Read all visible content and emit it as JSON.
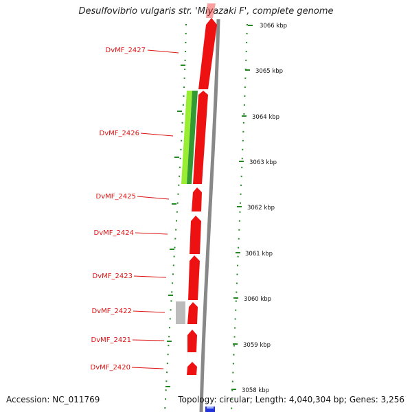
{
  "title": "Desulfovibrio vulgaris str. 'Miyazaki F', complete genome",
  "footer": {
    "accession": "Accession: NC_011769",
    "topology": "Topology: circular; Length: 4,040,304 bp; Genes: 3,256"
  },
  "colors": {
    "cds": "#ee1111",
    "gene_label": "#dd1111",
    "rna": "#bbbbbb",
    "green_light": "#99ee33",
    "green_dark": "#339933",
    "backbone": "#888888",
    "blue_feature": "#2233dd",
    "tick_green": "#228822"
  },
  "gene_labels": [
    "DvMF_2427",
    "DvMF_2426",
    "DvMF_2425",
    "DvMF_2424",
    "DvMF_2423",
    "DvMF_2422",
    "DvMF_2421",
    "DvMF_2420"
  ],
  "ticks": [
    "3066 kbp",
    "3065 kbp",
    "3064 kbp",
    "3063 kbp",
    "3062 kbp",
    "3061 kbp",
    "3060 kbp",
    "3059 kbp",
    "3058 kbp"
  ]
}
